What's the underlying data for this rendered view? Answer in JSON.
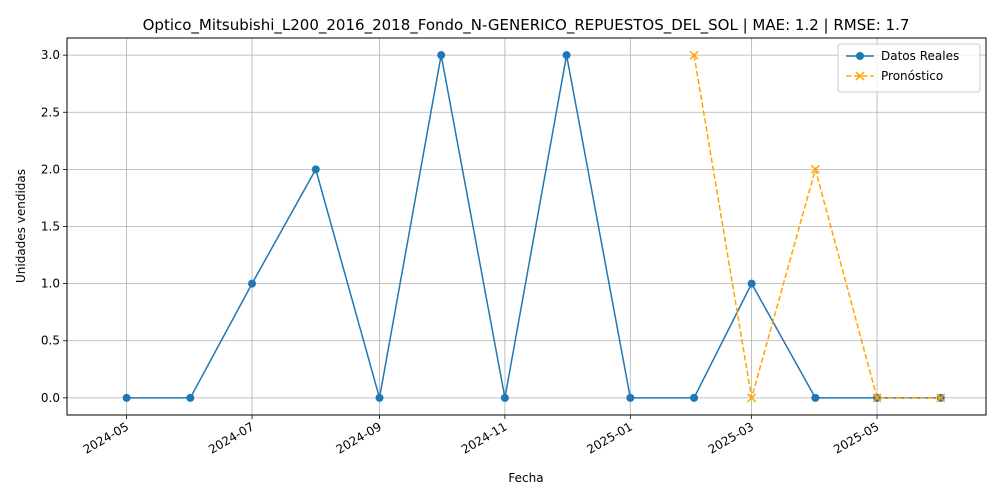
{
  "chart_data": {
    "type": "line",
    "title": "Optico_Mitsubishi_L200_2016_2018_Fondo_N-GENERICO_REPUESTOS_DEL_SOL | MAE: 1.2 | RMSE: 1.7",
    "xlabel": "Fecha",
    "ylabel": "Unidades vendidas",
    "ylim": [
      -0.15,
      3.15
    ],
    "xlim": [
      "2024-04-02",
      "2025-06-23"
    ],
    "grid": true,
    "legend_position": "top-right",
    "x_ticks": [
      "2024-05",
      "2024-07",
      "2024-09",
      "2024-11",
      "2025-01",
      "2025-03",
      "2025-05"
    ],
    "y_ticks": [
      "0.0",
      "0.5",
      "1.0",
      "1.5",
      "2.0",
      "2.5",
      "3.0"
    ],
    "series": [
      {
        "name": "Datos Reales",
        "color": "#1f77b4",
        "marker": "circle",
        "linestyle": "solid",
        "x": [
          "2024-05-01",
          "2024-06-01",
          "2024-07-01",
          "2024-08-01",
          "2024-09-01",
          "2024-10-01",
          "2024-11-01",
          "2024-12-01",
          "2025-01-01",
          "2025-02-01",
          "2025-03-01",
          "2025-04-01",
          "2025-05-01",
          "2025-06-01"
        ],
        "values": [
          0,
          0,
          1,
          2,
          0,
          3,
          0,
          3,
          0,
          0,
          1,
          0,
          0,
          0
        ]
      },
      {
        "name": "Pronóstico",
        "color": "#ffa500",
        "marker": "x",
        "linestyle": "dashed",
        "x": [
          "2025-02-01",
          "2025-03-01",
          "2025-04-01",
          "2025-05-01",
          "2025-06-01"
        ],
        "values": [
          3,
          0,
          2,
          0,
          0
        ]
      }
    ]
  }
}
